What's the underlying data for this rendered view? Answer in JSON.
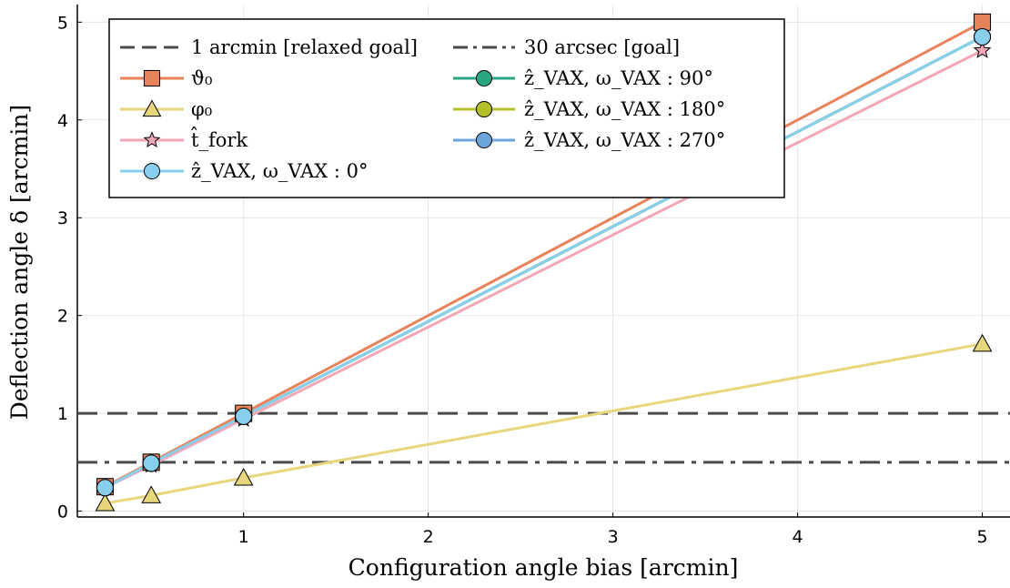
{
  "chart_data": {
    "type": "line",
    "xlabel": "Configuration angle bias [arcmin]",
    "ylabel": "Deflection angle δ [arcmin]",
    "xlim": [
      0.1,
      5.15
    ],
    "ylim": [
      -0.06,
      5.18
    ],
    "xticks": [
      1,
      2,
      3,
      4,
      5
    ],
    "yticks": [
      0,
      1,
      2,
      3,
      4,
      5
    ],
    "grid": true,
    "legend_position": "top-left",
    "x": [
      0.25,
      0.5,
      1,
      5
    ],
    "reference_lines": [
      {
        "name": "1 arcmin [relaxed goal]",
        "y": 1,
        "style": "dashed",
        "color": "#4a4a4a"
      },
      {
        "name": "30 arcsec [goal]",
        "y": 0.5,
        "style": "dashdot",
        "color": "#4a4a4a"
      }
    ],
    "series": [
      {
        "name": "ϑ₀",
        "color": "#e8825a",
        "marker": "square",
        "values": [
          0.25,
          0.5,
          1.0,
          5.0
        ]
      },
      {
        "name": "φ₀",
        "color": "#e8d67c",
        "marker": "triangle",
        "values": [
          0.08,
          0.16,
          0.34,
          1.71
        ]
      },
      {
        "name": "t̂_fork",
        "color": "#f4a6b7",
        "marker": "star",
        "values": [
          0.24,
          0.47,
          0.94,
          4.71
        ]
      },
      {
        "name": "ẑ_VAX, ω_VAX : 0°",
        "color": "#87cfed",
        "marker": "circle",
        "values": [
          0.24,
          0.49,
          0.97,
          4.85
        ]
      },
      {
        "name": "ẑ_VAX, ω_VAX : 90°",
        "color": "#2ba683",
        "marker": "circle",
        "values": [
          0.24,
          0.49,
          0.97,
          4.85
        ]
      },
      {
        "name": "ẑ_VAX, ω_VAX : 180°",
        "color": "#b5c02a",
        "marker": "circle",
        "values": [
          0.24,
          0.49,
          0.97,
          4.85
        ]
      },
      {
        "name": "ẑ_VAX, ω_VAX : 270°",
        "color": "#6ba5dc",
        "marker": "circle",
        "values": [
          0.24,
          0.49,
          0.97,
          4.85
        ]
      }
    ]
  }
}
